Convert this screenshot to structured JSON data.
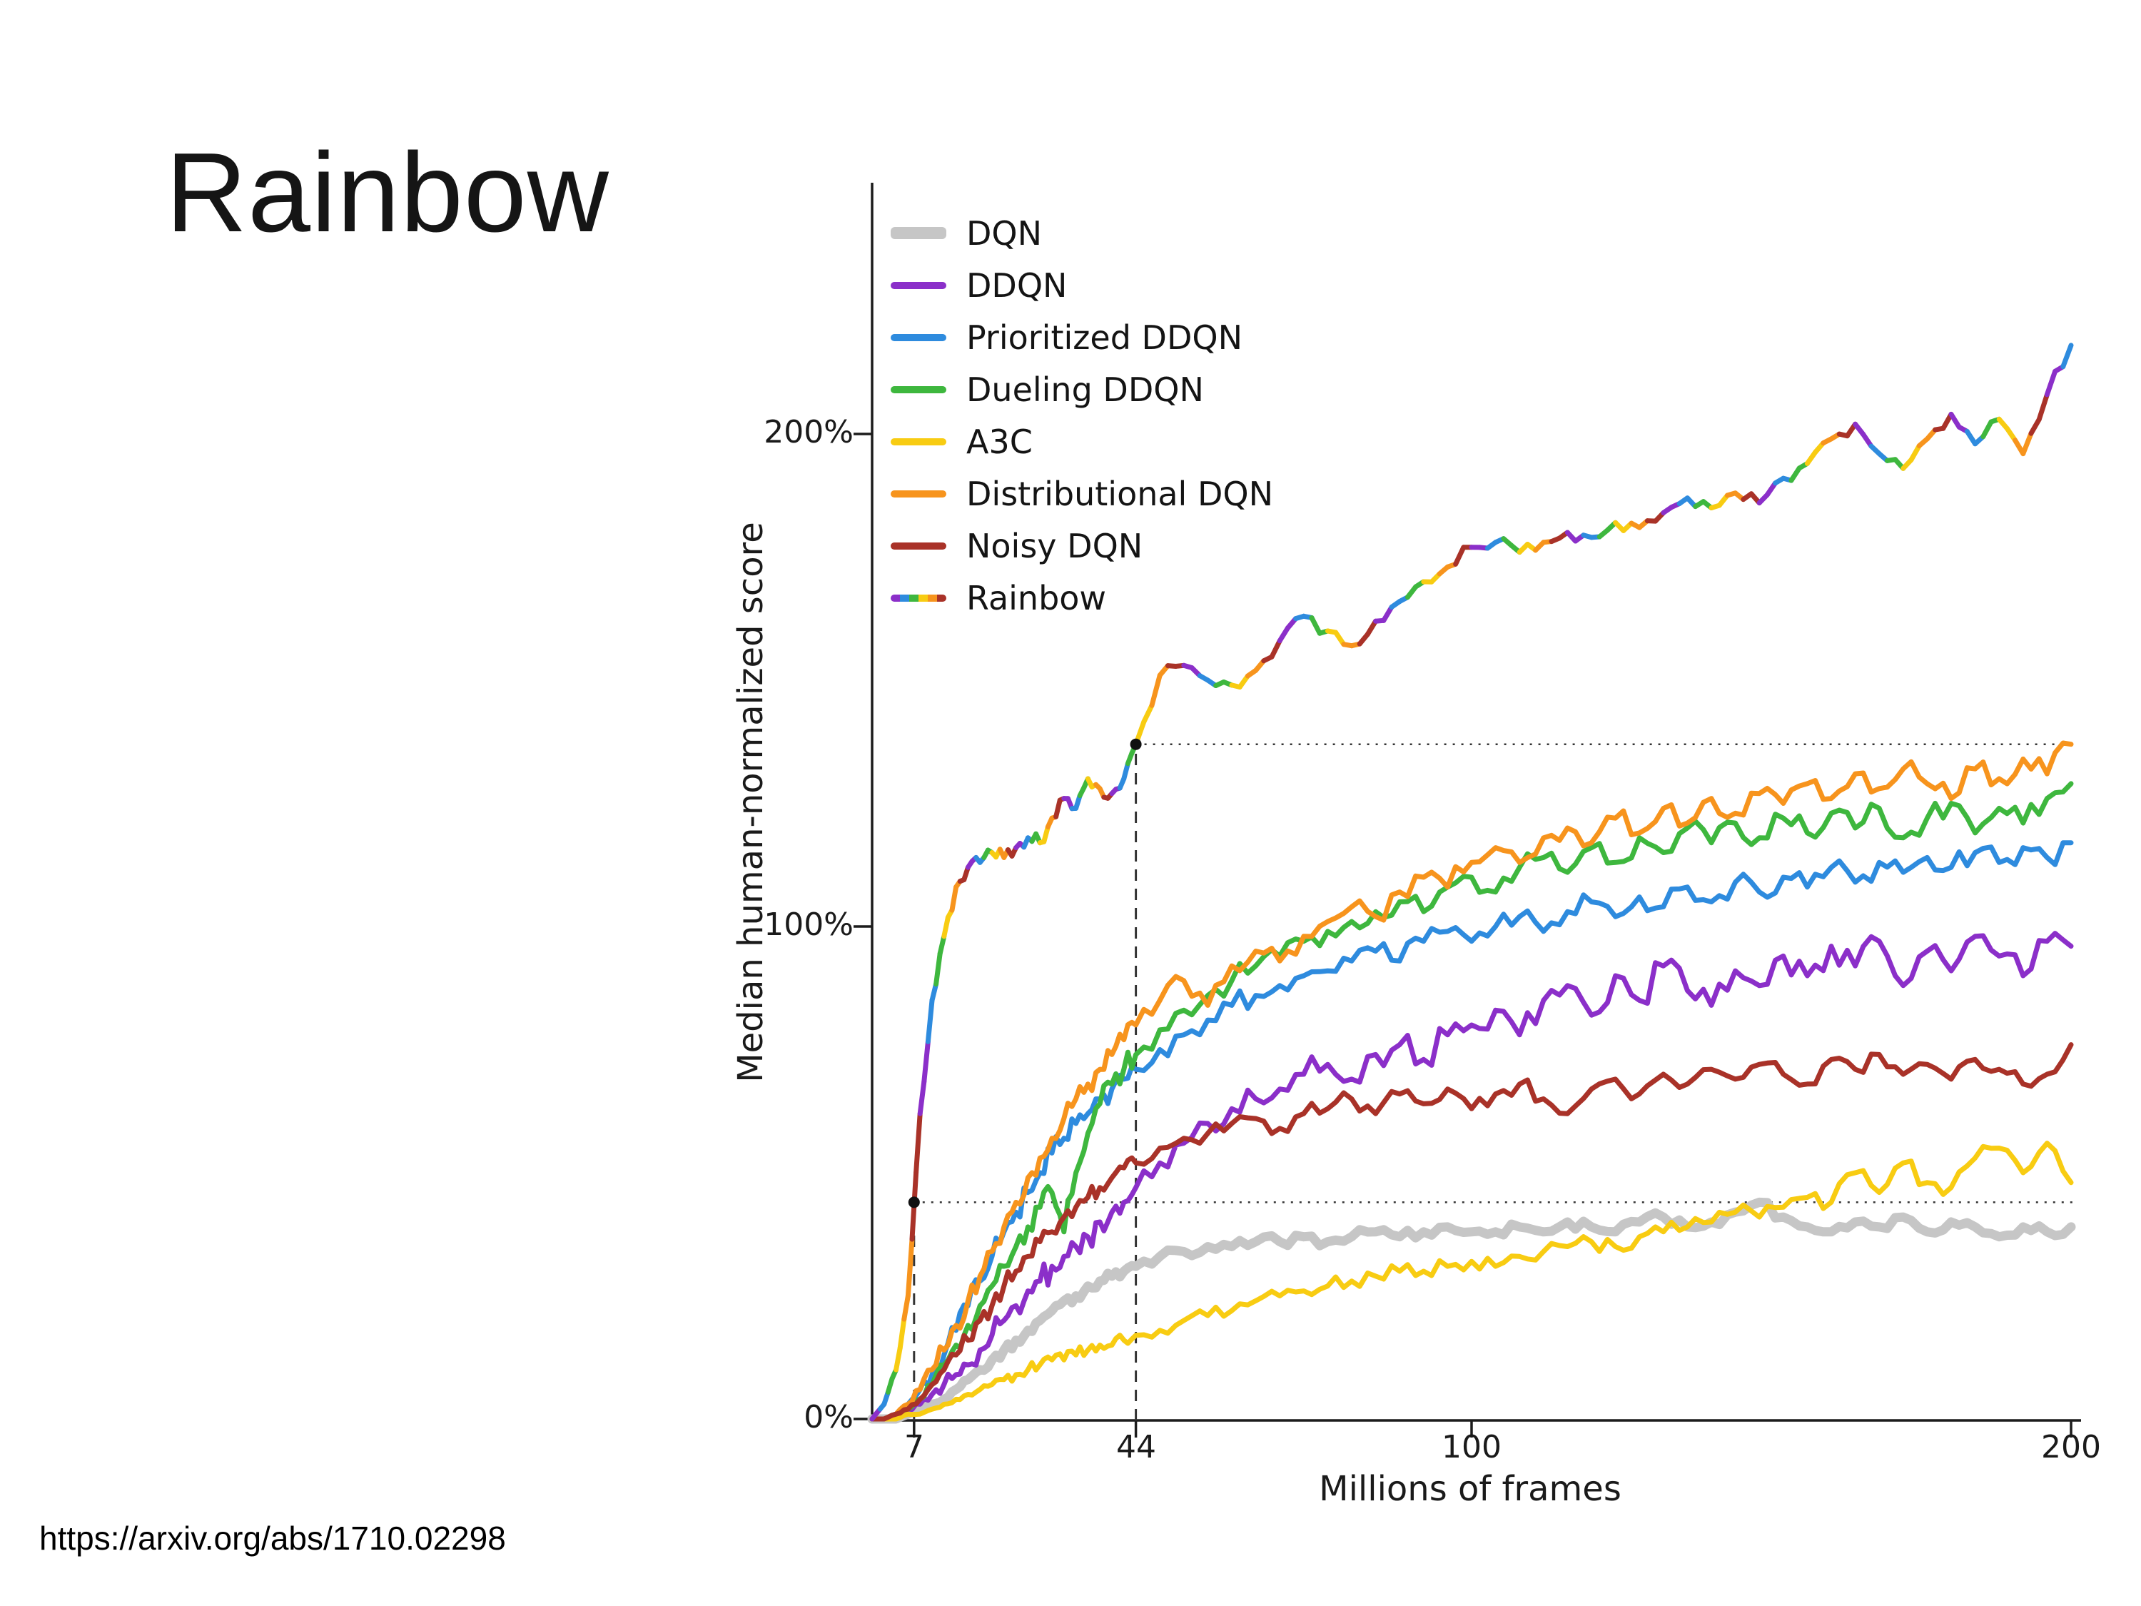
{
  "slide": {
    "title": "Rainbow",
    "source_url": "https://arxiv.org/abs/1710.02298",
    "background": "#ffffff"
  },
  "chart_data": {
    "type": "line",
    "title": "",
    "xlabel": "Millions of frames",
    "ylabel": "Median human-normalized score",
    "xlim": [
      0,
      200
    ],
    "ylim": [
      0,
      250
    ],
    "x_ticks": [
      7,
      44,
      100,
      200
    ],
    "x_tick_labels": [
      "7",
      "44",
      "100",
      "200"
    ],
    "y_ticks": [
      0,
      100,
      200
    ],
    "y_tick_labels": [
      "0%",
      "100%",
      "200%"
    ],
    "legend_position": "upper left",
    "grid": false,
    "axis_color": "#1c1c1c",
    "rainbow_colors": [
      "#8b2fc9",
      "#2e8bde",
      "#3eb73e",
      "#f8cc12",
      "#f7941d",
      "#a93228"
    ],
    "annotations": [
      {
        "x": 7,
        "y": 44,
        "style": "dashed vertical line to point, dotted horizontal line to right edge, black dot"
      },
      {
        "x": 44,
        "y": 137,
        "style": "dashed vertical line to point, dotted horizontal line to right edge, black dot"
      }
    ],
    "x": [
      0,
      2,
      4,
      6,
      8,
      10,
      12,
      14,
      16,
      18,
      20,
      22,
      24,
      26,
      28,
      30,
      32,
      34,
      36,
      38,
      40,
      42,
      44,
      48,
      52,
      56,
      60,
      64,
      68,
      72,
      76,
      80,
      84,
      88,
      92,
      96,
      100,
      104,
      108,
      112,
      116,
      120,
      124,
      128,
      132,
      136,
      140,
      144,
      148,
      152,
      156,
      160,
      164,
      168,
      172,
      176,
      180,
      184,
      188,
      192,
      196,
      200
    ],
    "series": [
      {
        "name": "DQN",
        "color": "#c6c6c6",
        "width": 13,
        "jitter": 1.2,
        "values": [
          0,
          0,
          0,
          1,
          2,
          3,
          4,
          6,
          8,
          10,
          12,
          14,
          16,
          18,
          20,
          22,
          24,
          25,
          27,
          28,
          29,
          30,
          31,
          33,
          34,
          35,
          35,
          36,
          36,
          37,
          36,
          37,
          38,
          37,
          38,
          39,
          38,
          38,
          39,
          38,
          40,
          39,
          38,
          40,
          41,
          39,
          40,
          42,
          44,
          41,
          39,
          38,
          40,
          39,
          41,
          38,
          40,
          39,
          37,
          39,
          38,
          39
        ]
      },
      {
        "name": "DDQN",
        "color": "#8b2fc9",
        "width": 7,
        "jitter": 3,
        "values": [
          0,
          0,
          1,
          2,
          3,
          5,
          7,
          9,
          11,
          14,
          17,
          20,
          23,
          26,
          28,
          31,
          33,
          35,
          37,
          40,
          42,
          44,
          47,
          52,
          56,
          60,
          63,
          65,
          67,
          70,
          72,
          69,
          74,
          76,
          73,
          78,
          80,
          83,
          78,
          85,
          88,
          82,
          90,
          85,
          92,
          87,
          84,
          91,
          88,
          94,
          90,
          96,
          92,
          97,
          88,
          95,
          91,
          98,
          94,
          90,
          97,
          96
        ]
      },
      {
        "name": "Prioritized DDQN",
        "color": "#2e8bde",
        "width": 7,
        "jitter": 2.5,
        "values": [
          0,
          0,
          1,
          3,
          6,
          9,
          13,
          18,
          23,
          28,
          33,
          38,
          42,
          46,
          50,
          54,
          57,
          60,
          62,
          65,
          67,
          69,
          71,
          75,
          78,
          81,
          84,
          86,
          88,
          90,
          91,
          93,
          95,
          93,
          97,
          99,
          97,
          100,
          102,
          99,
          103,
          105,
          102,
          106,
          104,
          108,
          105,
          109,
          107,
          110,
          108,
          112,
          109,
          113,
          111,
          114,
          112,
          115,
          113,
          116,
          114,
          117
        ]
      },
      {
        "name": "Dueling DDQN",
        "color": "#3eb73e",
        "width": 7,
        "jitter": 2.5,
        "values": [
          0,
          0,
          1,
          2,
          4,
          7,
          11,
          15,
          19,
          23,
          27,
          31,
          35,
          39,
          43,
          46,
          38,
          50,
          58,
          64,
          68,
          71,
          74,
          79,
          83,
          86,
          89,
          92,
          94,
          97,
          99,
          101,
          103,
          105,
          103,
          108,
          110,
          107,
          112,
          114,
          111,
          116,
          113,
          118,
          115,
          120,
          117,
          121,
          118,
          122,
          119,
          123,
          120,
          124,
          118,
          122,
          125,
          119,
          124,
          121,
          126,
          129
        ]
      },
      {
        "name": "A3C",
        "color": "#f8cc12",
        "width": 7,
        "jitter": 1.8,
        "values": [
          0,
          0,
          0,
          1,
          1,
          2,
          3,
          4,
          5,
          6,
          7,
          8,
          9,
          10,
          11,
          12,
          12,
          13,
          14,
          15,
          15,
          16,
          17,
          18,
          20,
          21,
          22,
          24,
          25,
          26,
          27,
          28,
          29,
          30,
          30,
          31,
          32,
          31,
          33,
          34,
          35,
          36,
          35,
          37,
          38,
          39,
          40,
          42,
          41,
          43,
          45,
          44,
          50,
          46,
          52,
          48,
          47,
          53,
          55,
          50,
          56,
          48
        ]
      },
      {
        "name": "Distributional DQN",
        "color": "#f7941d",
        "width": 7,
        "jitter": 2.5,
        "values": [
          0,
          0,
          1,
          3,
          6,
          10,
          14,
          19,
          24,
          29,
          34,
          39,
          44,
          49,
          53,
          57,
          61,
          65,
          68,
          71,
          74,
          77,
          80,
          85,
          89,
          84,
          92,
          95,
          93,
          98,
          101,
          104,
          102,
          107,
          110,
          108,
          113,
          116,
          113,
          118,
          120,
          117,
          122,
          119,
          124,
          121,
          126,
          123,
          127,
          125,
          129,
          126,
          131,
          128,
          132,
          129,
          126,
          132,
          130,
          134,
          131,
          137
        ]
      },
      {
        "name": "Noisy DQN",
        "color": "#a93228",
        "width": 7,
        "jitter": 2,
        "values": [
          0,
          0,
          1,
          2,
          4,
          7,
          10,
          13,
          16,
          20,
          23,
          27,
          30,
          33,
          36,
          38,
          41,
          43,
          45,
          47,
          49,
          51,
          52,
          55,
          57,
          58,
          60,
          61,
          59,
          62,
          63,
          65,
          62,
          66,
          64,
          67,
          63,
          66,
          68,
          65,
          62,
          67,
          69,
          66,
          70,
          68,
          71,
          69,
          72,
          70,
          68,
          73,
          71,
          74,
          70,
          72,
          69,
          73,
          71,
          68,
          70,
          76
        ]
      },
      {
        "name": "Rainbow",
        "color": "multi",
        "width": 7,
        "jitter": 1.5,
        "values": [
          0,
          3,
          10,
          25,
          62,
          85,
          98,
          108,
          112,
          113,
          115,
          114,
          116,
          118,
          117,
          122,
          126,
          124,
          130,
          128,
          127,
          130,
          137,
          151,
          153,
          150,
          149,
          152,
          158,
          163,
          160,
          157,
          162,
          166,
          170,
          173,
          177,
          178,
          176,
          178,
          180,
          179,
          182,
          181,
          184,
          187,
          185,
          188,
          186,
          191,
          194,
          199,
          202,
          196,
          193,
          199,
          204,
          198,
          203,
          196,
          208,
          218
        ]
      }
    ]
  }
}
